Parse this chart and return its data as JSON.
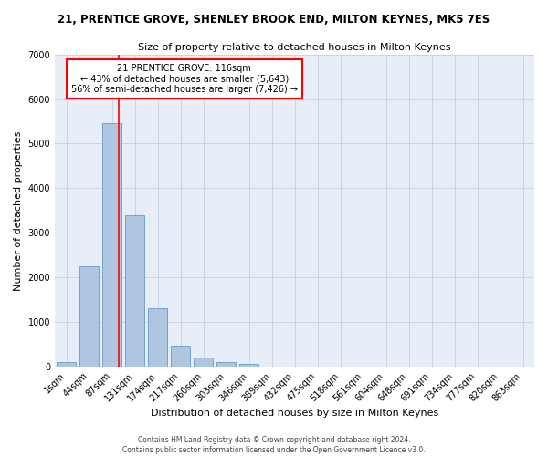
{
  "title": "21, PRENTICE GROVE, SHENLEY BROOK END, MILTON KEYNES, MK5 7ES",
  "subtitle": "Size of property relative to detached houses in Milton Keynes",
  "xlabel": "Distribution of detached houses by size in Milton Keynes",
  "ylabel": "Number of detached properties",
  "bar_color": "#aec6e0",
  "bar_edge_color": "#6699cc",
  "categories": [
    "1sqm",
    "44sqm",
    "87sqm",
    "131sqm",
    "174sqm",
    "217sqm",
    "260sqm",
    "303sqm",
    "346sqm",
    "389sqm",
    "432sqm",
    "475sqm",
    "518sqm",
    "561sqm",
    "604sqm",
    "648sqm",
    "691sqm",
    "734sqm",
    "777sqm",
    "820sqm",
    "863sqm"
  ],
  "values": [
    100,
    2250,
    5450,
    3400,
    1300,
    480,
    200,
    100,
    55,
    0,
    0,
    0,
    0,
    0,
    0,
    0,
    0,
    0,
    0,
    0,
    0
  ],
  "ylim": [
    0,
    7000
  ],
  "yticks": [
    0,
    1000,
    2000,
    3000,
    4000,
    5000,
    6000,
    7000
  ],
  "property_line_x": 2.3,
  "annotation_title": "21 PRENTICE GROVE: 116sqm",
  "annotation_line1": "← 43% of detached houses are smaller (5,643)",
  "annotation_line2": "56% of semi-detached houses are larger (7,426) →",
  "annotation_box_facecolor": "white",
  "annotation_box_edgecolor": "red",
  "vline_color": "red",
  "grid_color": "#c8d4e8",
  "background_color": "#e8eef8",
  "footer1": "Contains HM Land Registry data © Crown copyright and database right 2024.",
  "footer2": "Contains public sector information licensed under the Open Government Licence v3.0.",
  "title_fontsize": 8.5,
  "subtitle_fontsize": 8,
  "ylabel_fontsize": 8,
  "xlabel_fontsize": 8,
  "tick_fontsize": 7,
  "annotation_fontsize": 7,
  "footer_fontsize": 5.5
}
